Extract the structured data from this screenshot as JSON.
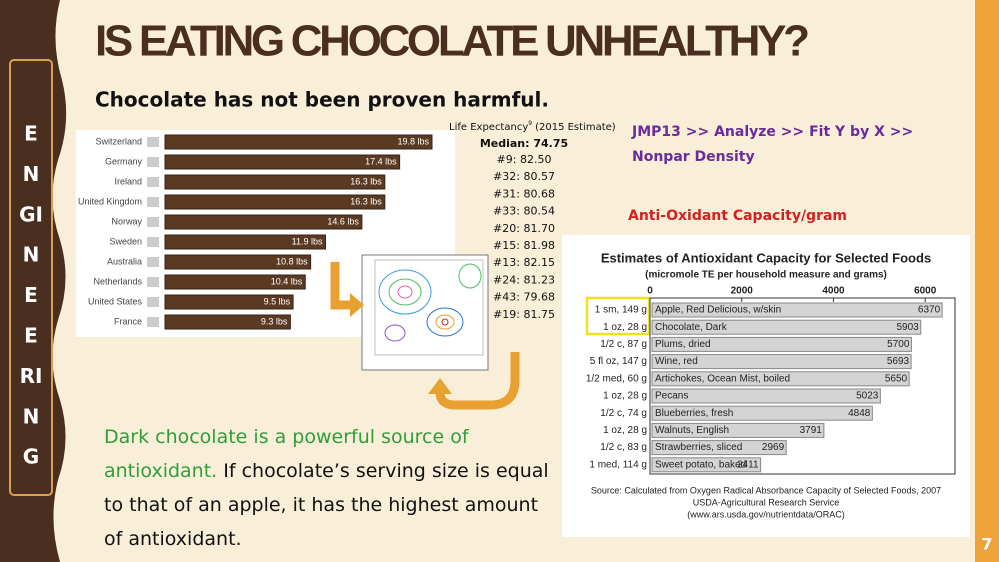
{
  "header": {
    "title": "IS EATING CHOCOLATE UNHEALTHY?",
    "subtitle": "Chocolate has not been proven harmful."
  },
  "sidebar": {
    "letters": [
      "E",
      "N",
      "GI",
      "N",
      "E",
      "E",
      "RI",
      "N",
      "G"
    ]
  },
  "consumption_chart": {
    "type": "bar",
    "categories": [
      "Switzerland",
      "Germany",
      "Ireland",
      "United Kingdom",
      "Norway",
      "Sweden",
      "Australia",
      "Netherlands",
      "United States",
      "France"
    ],
    "values": [
      19.8,
      17.4,
      16.3,
      16.3,
      14.6,
      11.9,
      10.8,
      10.4,
      9.5,
      9.3
    ],
    "value_labels": [
      "19.8 lbs",
      "17.4 lbs",
      "16.3 lbs",
      "16.3 lbs",
      "14.6 lbs",
      "11.9 lbs",
      "10.8 lbs",
      "10.4 lbs",
      "9.5 lbs",
      "9.3 lbs"
    ],
    "color": "#5b3a24"
  },
  "life_expectancy": {
    "title": "Life Expectancy",
    "superscript": "9",
    "subtitle": "(2015 Estimate)",
    "median": "Median: 74.75",
    "entries": [
      "#9: 82.50",
      "#32: 80.57",
      "#31: 80.68",
      "#33: 80.54",
      "#20: 81.70",
      "#15: 81.98",
      "#13: 82.15",
      "#24: 81.23",
      "#43: 79.68",
      "#19: 81.75"
    ]
  },
  "jmp": {
    "lines": [
      "JMP13 >> Analyze >> Fit Y by X >>",
      "Nonpar Density"
    ]
  },
  "antioxidant_label": "Anti-Oxidant Capacity/gram",
  "antioxidant_chart": {
    "type": "bar",
    "title": "Estimates of Antioxidant Capacity for Selected Foods",
    "subtitle": "(micromole TE per household measure and grams)",
    "servings": [
      "1 sm, 149 g",
      "1 oz, 28 g",
      "1/2 c, 87 g",
      "5 fl oz, 147 g",
      "1/2 med, 60 g",
      "1 oz, 28 g",
      "1/2 c, 74 g",
      "1 oz, 28 g",
      "1/2 c, 83 g",
      "1 med, 114 g"
    ],
    "categories": [
      "Apple, Red Delicious, w/skin",
      "Chocolate, Dark",
      "Plums, dried",
      "Wine, red",
      "Artichokes, Ocean Mist, boiled",
      "Pecans",
      "Blueberries, fresh",
      "Walnuts, English",
      "Strawberries, sliced",
      "Sweet potato, baked"
    ],
    "values": [
      6370,
      5903,
      5700,
      5693,
      5650,
      5023,
      4848,
      3791,
      2969,
      2411
    ],
    "color": "#d4d4d4",
    "xlim": [
      0,
      6650
    ],
    "xticks": [
      0,
      2000,
      4000,
      6000
    ],
    "source": [
      "Source: Calculated from Oxygen Radical Absorbance Capacity of Selected Foods, 2007",
      "USDA-Agricultural Research Service",
      "(www.ars.usda.gov/nutrientdata/ORAC)"
    ]
  },
  "body": {
    "highlight": "Dark chocolate is a powerful source of antioxidant.",
    "text": "If chocolate’s serving size is equal to that of an apple, it has the highest amount of antioxidant."
  },
  "page_number": "7"
}
